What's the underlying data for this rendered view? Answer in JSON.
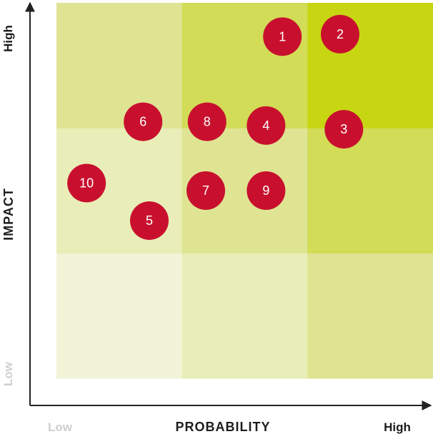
{
  "chart_data": {
    "type": "scatter",
    "title": "",
    "xlabel": "PROBABILITY",
    "ylabel": "IMPACT",
    "x_ticks": [
      "Low",
      "High"
    ],
    "y_ticks": [
      "Low",
      "High"
    ],
    "xlim": [
      0,
      3
    ],
    "ylim": [
      0,
      3
    ],
    "grid": "3x3 heat-map shading",
    "point_color": "#c8102e",
    "cell_colors": [
      [
        "#f1f4d6",
        "#e9eeb8",
        "#dfe493"
      ],
      [
        "#e9eeb8",
        "#dfe493",
        "#d2dc56"
      ],
      [
        "#dfe493",
        "#d2dc56",
        "#c8d513"
      ]
    ],
    "points": [
      {
        "label": "1",
        "x": 1.8,
        "y": 2.73
      },
      {
        "label": "2",
        "x": 2.26,
        "y": 2.75
      },
      {
        "label": "3",
        "x": 2.29,
        "y": 1.99
      },
      {
        "label": "4",
        "x": 1.67,
        "y": 2.02
      },
      {
        "label": "5",
        "x": 0.74,
        "y": 1.26
      },
      {
        "label": "6",
        "x": 0.69,
        "y": 2.05
      },
      {
        "label": "7",
        "x": 1.19,
        "y": 1.5
      },
      {
        "label": "8",
        "x": 1.2,
        "y": 2.05
      },
      {
        "label": "9",
        "x": 1.67,
        "y": 1.5
      },
      {
        "label": "10",
        "x": 0.24,
        "y": 1.56
      }
    ]
  }
}
